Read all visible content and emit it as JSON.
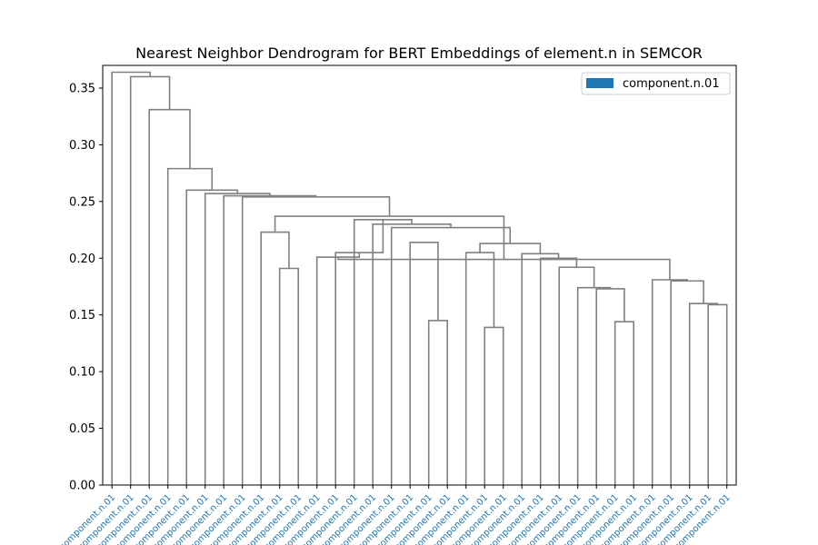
{
  "chart_data": {
    "type": "dendrogram",
    "title": "Nearest Neighbor Dendrogram for BERT Embeddings of element.n in SEMCOR",
    "xlabel": "",
    "ylabel": "",
    "ylim": [
      0,
      0.37
    ],
    "yticks": [
      0.0,
      0.05,
      0.1,
      0.15,
      0.2,
      0.25,
      0.3,
      0.35
    ],
    "ytick_labels": [
      "0.00",
      "0.05",
      "0.10",
      "0.15",
      "0.20",
      "0.25",
      "0.30",
      "0.35"
    ],
    "grid": false,
    "legend": {
      "placement": "top-right",
      "entries": [
        {
          "label": "component.n.01",
          "color": "#1f77b4"
        }
      ]
    },
    "link_color": "#808080",
    "leaf_label_color": "#1f77b4",
    "leaves": [
      "component.n.01",
      "component.n.01",
      "component.n.01",
      "component.n.01",
      "component.n.01",
      "component.n.01",
      "component.n.01",
      "component.n.01",
      "component.n.01",
      "component.n.01",
      "component.n.01",
      "component.n.01",
      "component.n.01",
      "component.n.01",
      "component.n.01",
      "component.n.01",
      "component.n.01",
      "component.n.01",
      "component.n.01",
      "component.n.01",
      "component.n.01",
      "component.n.01",
      "component.n.01",
      "component.n.01",
      "component.n.01",
      "component.n.01",
      "component.n.01",
      "component.n.01",
      "component.n.01",
      "component.n.01",
      "component.n.01",
      "component.n.01",
      "component.n.01",
      "component.n.01"
    ],
    "merges": [
      {
        "left": 9,
        "right": 10,
        "height": 0.191
      },
      {
        "left": 8,
        "right": 34,
        "height": 0.223
      },
      {
        "left": 17,
        "right": 18,
        "height": 0.145
      },
      {
        "left": 20,
        "right": 21,
        "height": 0.139
      },
      {
        "left": 19,
        "right": 37,
        "height": 0.205
      },
      {
        "left": 16,
        "right": 36,
        "height": 0.214
      },
      {
        "left": 27,
        "right": 28,
        "height": 0.144
      },
      {
        "left": 26,
        "right": 40,
        "height": 0.173
      },
      {
        "left": 25,
        "right": 41,
        "height": 0.174
      },
      {
        "left": 24,
        "right": 42,
        "height": 0.192
      },
      {
        "left": 32,
        "right": 33,
        "height": 0.159
      },
      {
        "left": 31,
        "right": 44,
        "height": 0.16
      },
      {
        "left": 30,
        "right": 45,
        "height": 0.18
      },
      {
        "left": 29,
        "right": 46,
        "height": 0.181
      },
      {
        "left": 23,
        "right": 43,
        "height": 0.2
      },
      {
        "left": 22,
        "right": 48,
        "height": 0.204
      },
      {
        "left": 38,
        "right": 49,
        "height": 0.213
      },
      {
        "left": 15,
        "right": 50,
        "height": 0.227
      },
      {
        "left": 14,
        "right": 51,
        "height": 0.23
      },
      {
        "left": 13,
        "right": 52,
        "height": 0.234
      },
      {
        "left": 12,
        "right": 53,
        "height": 0.205
      },
      {
        "left": 11,
        "right": 54,
        "height": 0.201
      },
      {
        "left": 47,
        "right": 55,
        "height": 0.199
      },
      {
        "left": 35,
        "right": 56,
        "height": 0.237
      },
      {
        "left": 7,
        "right": 57,
        "height": 0.254
      },
      {
        "left": 6,
        "right": 58,
        "height": 0.255
      },
      {
        "left": 5,
        "right": 59,
        "height": 0.257
      },
      {
        "left": 4,
        "right": 60,
        "height": 0.26
      },
      {
        "left": 3,
        "right": 61,
        "height": 0.279
      },
      {
        "left": 2,
        "right": 62,
        "height": 0.331
      },
      {
        "left": 1,
        "right": 63,
        "height": 0.36
      },
      {
        "left": 0,
        "right": 64,
        "height": 0.364
      }
    ]
  }
}
